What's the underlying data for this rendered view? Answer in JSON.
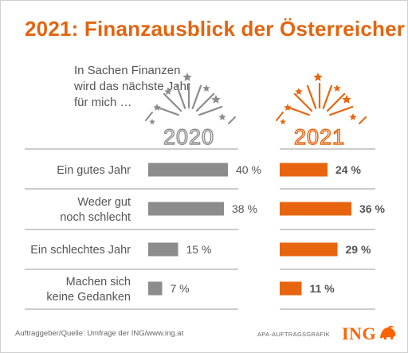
{
  "title": "2021: Finanzausblick der Österreicher",
  "question": "In Sachen Finanzen\nwird das nächste Jahr\nfür mich …",
  "colors": {
    "title": "#e2640f",
    "gray": "#8c8c8c",
    "orange": "#e8650f",
    "text": "#555555"
  },
  "chart_data": {
    "type": "bar",
    "orientation": "horizontal",
    "categories": [
      "Ein gutes Jahr",
      "Weder gut\nnoch schlecht",
      "Ein schlechtes Jahr",
      "Machen sich\nkeine Gedanken"
    ],
    "series": [
      {
        "name": "2020",
        "values": [
          40,
          38,
          15,
          7
        ],
        "labels": [
          "40 %",
          "38 %",
          "15 %",
          "7 %"
        ],
        "color": "#8c8c8c"
      },
      {
        "name": "2021",
        "values": [
          24,
          36,
          29,
          11
        ],
        "labels": [
          "24 %",
          "36 %",
          "29 %",
          "11 %"
        ],
        "color": "#e8650f"
      }
    ],
    "unit": "%"
  },
  "footer": {
    "source": "Auftraggeber/Quelle: Umfrage der ING/www.ing.at",
    "agency": "APA-AUFTRAGSGRAFIK",
    "brand": "ING"
  }
}
